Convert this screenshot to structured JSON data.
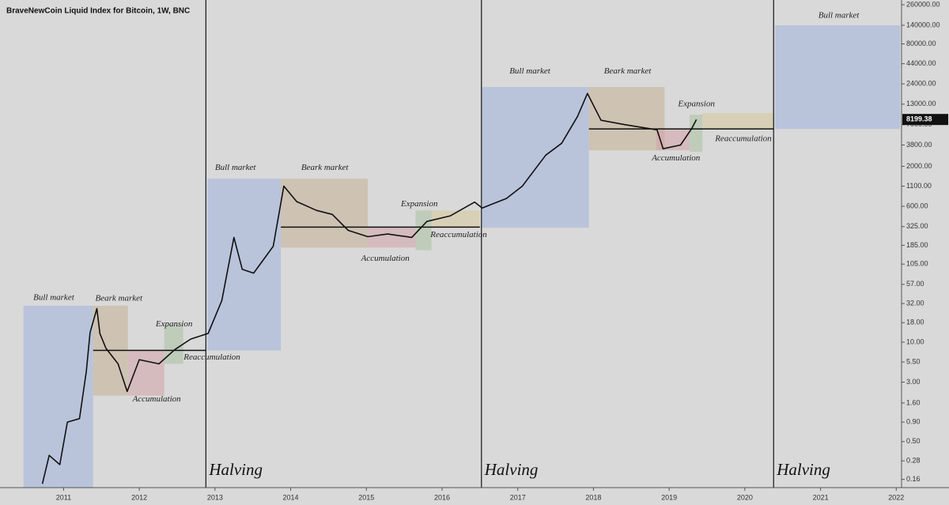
{
  "chart_data": {
    "type": "line",
    "title": "BraveNewCoin Liquid Index for Bitcoin, 1W, BNC",
    "log_y": true,
    "color": "#111111",
    "xlim": [
      2010.16,
      2022.07
    ],
    "ylim": [
      0.125,
      300000
    ],
    "xticks": [
      2011,
      2012,
      2013,
      2014,
      2015,
      2016,
      2017,
      2018,
      2019,
      2020,
      2021,
      2022
    ],
    "yticks": [
      {
        "value": 0.16,
        "label": "0.16"
      },
      {
        "value": 0.28,
        "label": "0.28"
      },
      {
        "value": 0.5,
        "label": "0.50"
      },
      {
        "value": 0.9,
        "label": "0.90"
      },
      {
        "value": 1.6,
        "label": "1.60"
      },
      {
        "value": 3,
        "label": "3.00"
      },
      {
        "value": 5.5,
        "label": "5.50"
      },
      {
        "value": 10,
        "label": "10.00"
      },
      {
        "value": 18,
        "label": "18.00"
      },
      {
        "value": 32,
        "label": "32.00"
      },
      {
        "value": 57,
        "label": "57.00"
      },
      {
        "value": 105,
        "label": "105.00"
      },
      {
        "value": 185,
        "label": "185.00"
      },
      {
        "value": 325,
        "label": "325.00"
      },
      {
        "value": 600,
        "label": "600.00"
      },
      {
        "value": 1100,
        "label": "1100.00"
      },
      {
        "value": 2000,
        "label": "2000.00"
      },
      {
        "value": 3800,
        "label": "3800.00"
      },
      {
        "value": 7000,
        "label": "7000.00"
      },
      {
        "value": 13000,
        "label": "13000.00"
      },
      {
        "value": 24000,
        "label": "24000.00"
      },
      {
        "value": 44000,
        "label": "44000.00"
      },
      {
        "value": 80000,
        "label": "80000.00"
      },
      {
        "value": 140000,
        "label": "140000.00"
      },
      {
        "value": 260000,
        "label": "260000.00"
      }
    ],
    "x": [
      2010.72,
      2010.81,
      2010.95,
      2011.05,
      2011.21,
      2011.3,
      2011.35,
      2011.44,
      2011.48,
      2011.56,
      2011.72,
      2011.84,
      2012.0,
      2012.26,
      2012.47,
      2012.68,
      2012.91,
      2013.09,
      2013.25,
      2013.36,
      2013.51,
      2013.77,
      2013.91,
      2014.08,
      2014.34,
      2014.55,
      2014.76,
      2015.02,
      2015.28,
      2015.6,
      2015.8,
      2016.11,
      2016.43,
      2016.53,
      2016.85,
      2017.06,
      2017.37,
      2017.58,
      2017.79,
      2017.92,
      2018.1,
      2018.42,
      2018.84,
      2018.92,
      2019.15,
      2019.3,
      2019.36
    ],
    "values": [
      0.14,
      0.33,
      0.25,
      0.9,
      1.0,
      4.1,
      13.4,
      27.5,
      13,
      8.3,
      5.2,
      2.26,
      5.9,
      5.2,
      8,
      11,
      13,
      35,
      235,
      90,
      80,
      180,
      1100,
      690,
      530,
      470,
      290,
      240,
      260,
      235,
      380,
      450,
      680,
      570,
      760,
      1100,
      2800,
      4000,
      9000,
      18000,
      8000,
      7000,
      6000,
      3400,
      3800,
      6300,
      8199.38
    ],
    "regions": [
      {
        "x": [
          2010.47,
          2011.39
        ],
        "y": [
          0.125,
          30
        ],
        "color": "#9fb2dc"
      },
      {
        "x": [
          2011.39,
          2011.85
        ],
        "y": [
          2.0,
          30
        ],
        "color": "#c4ae94"
      },
      {
        "x": [
          2011.85,
          2012.33
        ],
        "y": [
          2.0,
          7.8
        ],
        "color": "#d2a3a8"
      },
      {
        "x": [
          2012.33,
          2012.58
        ],
        "y": [
          5.2,
          17
        ],
        "color": "#a9c1a0"
      },
      {
        "x": [
          2012.9,
          2013.87
        ],
        "y": [
          7.8,
          1375
        ],
        "color": "#9fb2dc"
      },
      {
        "x": [
          2013.87,
          2015.02
        ],
        "y": [
          173,
          1375
        ],
        "color": "#c4ae94"
      },
      {
        "x": [
          2015.02,
          2015.65
        ],
        "y": [
          173,
          320
        ],
        "color": "#d2a3a8"
      },
      {
        "x": [
          2015.65,
          2015.86
        ],
        "y": [
          160,
          530
        ],
        "color": "#a9c1a0"
      },
      {
        "x": [
          2015.86,
          2016.5
        ],
        "y": [
          320,
          530
        ],
        "color": "#d6c99a"
      },
      {
        "x": [
          2016.53,
          2017.94
        ],
        "y": [
          315,
          21800
        ],
        "color": "#9fb2dc"
      },
      {
        "x": [
          2017.94,
          2018.94
        ],
        "y": [
          3240,
          21800
        ],
        "color": "#c4ae94"
      },
      {
        "x": [
          2018.83,
          2019.27
        ],
        "y": [
          3240,
          6170
        ],
        "color": "#d2a3a8"
      },
      {
        "x": [
          2019.27,
          2019.44
        ],
        "y": [
          3100,
          9460
        ],
        "color": "#a9c1a0"
      },
      {
        "x": [
          2019.44,
          2020.38
        ],
        "y": [
          6170,
          9900
        ],
        "color": "#d6c99a"
      },
      {
        "x": [
          2020.4,
          2022.05
        ],
        "y": [
          6170,
          140000
        ],
        "color": "#9fb2dc"
      }
    ],
    "levels": [
      {
        "x": [
          2011.39,
          2012.88
        ],
        "value": 7.8
      },
      {
        "x": [
          2013.87,
          2016.5
        ],
        "value": 320
      },
      {
        "x": [
          2017.94,
          2020.38
        ],
        "value": 6170
      }
    ],
    "halvings": [
      {
        "x": 2012.88,
        "label": "Halving"
      },
      {
        "x": 2016.52,
        "label": "Halving"
      },
      {
        "x": 2020.38,
        "label": "Halving"
      }
    ],
    "annotations": [
      {
        "text": "Bull market",
        "x": 2010.87,
        "y": 38
      },
      {
        "text": "Beark market",
        "x": 2011.73,
        "y": 37
      },
      {
        "text": "Expansion",
        "x": 2012.46,
        "y": 17
      },
      {
        "text": "Reaccumulation",
        "x": 2012.96,
        "y": 6.3
      },
      {
        "text": "Accumulation",
        "x": 2012.23,
        "y": 1.77
      },
      {
        "text": "Bull market",
        "x": 2013.27,
        "y": 1900
      },
      {
        "text": "Beark market",
        "x": 2014.45,
        "y": 1900
      },
      {
        "text": "Expansion",
        "x": 2015.7,
        "y": 640
      },
      {
        "text": "Reaccumulation",
        "x": 2016.22,
        "y": 253
      },
      {
        "text": "Accumulation",
        "x": 2015.25,
        "y": 124
      },
      {
        "text": "Bull market",
        "x": 2017.16,
        "y": 35000
      },
      {
        "text": "Beark market",
        "x": 2018.45,
        "y": 35000
      },
      {
        "text": "Expansion",
        "x": 2019.36,
        "y": 12900
      },
      {
        "text": "Reaccumulation",
        "x": 2019.98,
        "y": 4520
      },
      {
        "text": "Accumulation",
        "x": 2019.09,
        "y": 2550
      },
      {
        "text": "Bull market",
        "x": 2021.24,
        "y": 186000
      }
    ]
  }
}
